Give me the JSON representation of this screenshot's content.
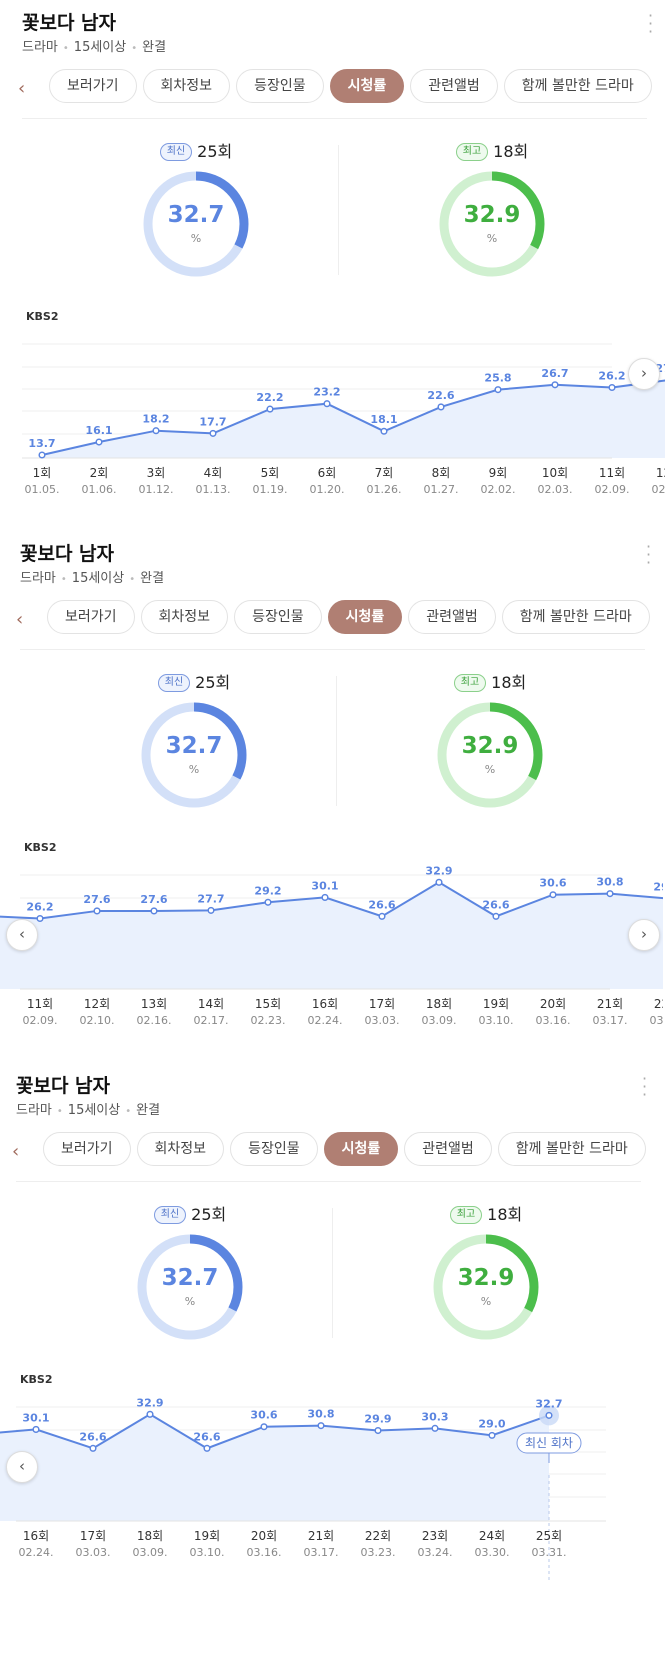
{
  "show": {
    "title": "꽃보다 남자",
    "genre": "드라마",
    "rating": "15세이상",
    "status": "완결",
    "more_icon": "more-vertical-icon"
  },
  "tabs": [
    "보러가기",
    "회차정보",
    "등장인물",
    "시청률",
    "관련앨범",
    "함께 볼만한 드라마"
  ],
  "active_tab": "시청률",
  "stats": {
    "latest": {
      "badge": "최신",
      "episode": "25회",
      "value": "32.7",
      "unit": "%",
      "color": "#5b85e0"
    },
    "best": {
      "badge": "최고",
      "episode": "18회",
      "value": "32.9",
      "unit": "%",
      "color": "#4cbe4c"
    }
  },
  "network": "KBS2",
  "latest_tag": "최신 회차",
  "chart_data": {
    "type": "line",
    "x": [
      "1회",
      "2회",
      "3회",
      "4회",
      "5회",
      "6회",
      "7회",
      "8회",
      "9회",
      "10회",
      "11회",
      "12회",
      "13회",
      "14회",
      "15회",
      "16회",
      "17회",
      "18회",
      "19회",
      "20회",
      "21회",
      "22회",
      "23회",
      "24회",
      "25회"
    ],
    "dates": [
      "01.05.",
      "01.06.",
      "01.12.",
      "01.13.",
      "01.19.",
      "01.20.",
      "01.26.",
      "01.27.",
      "02.02.",
      "02.03.",
      "02.09.",
      "02.10.",
      "02.16.",
      "02.17.",
      "02.23.",
      "02.24.",
      "03.03.",
      "03.09.",
      "03.10.",
      "03.16.",
      "03.17.",
      "03.23.",
      "03.24.",
      "03.30.",
      "03.31."
    ],
    "values": [
      13.7,
      16.1,
      18.2,
      17.7,
      22.2,
      23.2,
      18.1,
      22.6,
      25.8,
      26.7,
      26.2,
      27.6,
      27.6,
      27.7,
      29.2,
      30.1,
      26.6,
      32.9,
      26.6,
      30.6,
      30.8,
      29.9,
      30.3,
      29.0,
      32.7
    ],
    "labels": [
      "13.7",
      "16.1",
      "18.2",
      "17.7",
      "22.2",
      "23.2",
      "18.1",
      "22.6",
      "25.8",
      "26.7",
      "26.2",
      "27.6",
      "27.6",
      "27.7",
      "29.2",
      "30.1",
      "26.6",
      "32.9",
      "26.6",
      "30.6",
      "30.8",
      "29.9",
      "30.3",
      "29.0",
      "32.7"
    ],
    "line_color": "#5b85e0",
    "fill_color": "#eaf1fd"
  },
  "views": [
    {
      "start": 0,
      "prev": false,
      "next": true,
      "tag": false
    },
    {
      "start": 10,
      "prev": true,
      "next": true,
      "tag": false
    },
    {
      "start": 15,
      "prev": true,
      "next": false,
      "tag": true
    }
  ]
}
